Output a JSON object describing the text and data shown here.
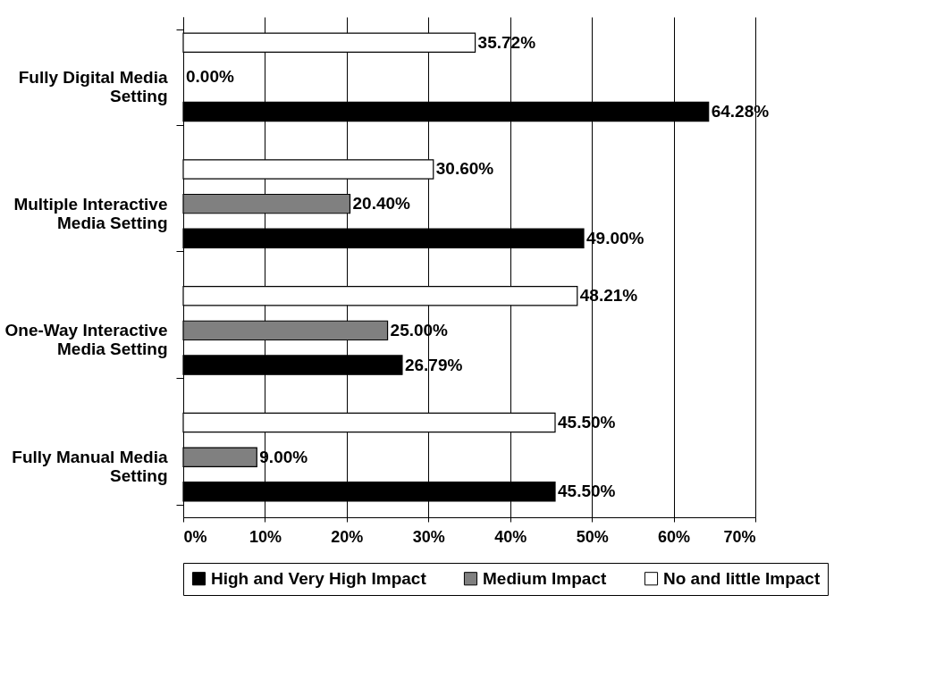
{
  "chart_data": {
    "type": "bar",
    "orientation": "horizontal",
    "categories": [
      "Fully Digital Media Setting",
      "Multiple Interactive Media Setting",
      "One-Way Interactive Media Setting",
      "Fully Manual Media Setting"
    ],
    "series": [
      {
        "name": "No and little Impact",
        "color": "#ffffff",
        "values": [
          35.72,
          30.6,
          48.21,
          45.5
        ],
        "value_labels": [
          "35.72%",
          "30.60%",
          "48.21%",
          "45.50%"
        ]
      },
      {
        "name": "Medium Impact",
        "color": "#808080",
        "values": [
          0.0,
          20.4,
          25.0,
          9.0
        ],
        "value_labels": [
          "0.00%",
          "20.40%",
          "25.00%",
          "9.00%"
        ]
      },
      {
        "name": "High and Very High Impact",
        "color": "#000000",
        "values": [
          64.28,
          49.0,
          26.79,
          45.5
        ],
        "value_labels": [
          "64.28%",
          "49.00%",
          "26.79%",
          "45.50%"
        ]
      }
    ],
    "xlim": [
      0,
      70
    ],
    "xticks": [
      {
        "value": 0,
        "label": "0%"
      },
      {
        "value": 10,
        "label": "10%"
      },
      {
        "value": 20,
        "label": "20%"
      },
      {
        "value": 30,
        "label": "30%"
      },
      {
        "value": 40,
        "label": "40%"
      },
      {
        "value": 50,
        "label": "50%"
      },
      {
        "value": 60,
        "label": "60%"
      },
      {
        "value": 70,
        "label": "70%"
      }
    ],
    "grid": "x",
    "legend": "bottom"
  }
}
